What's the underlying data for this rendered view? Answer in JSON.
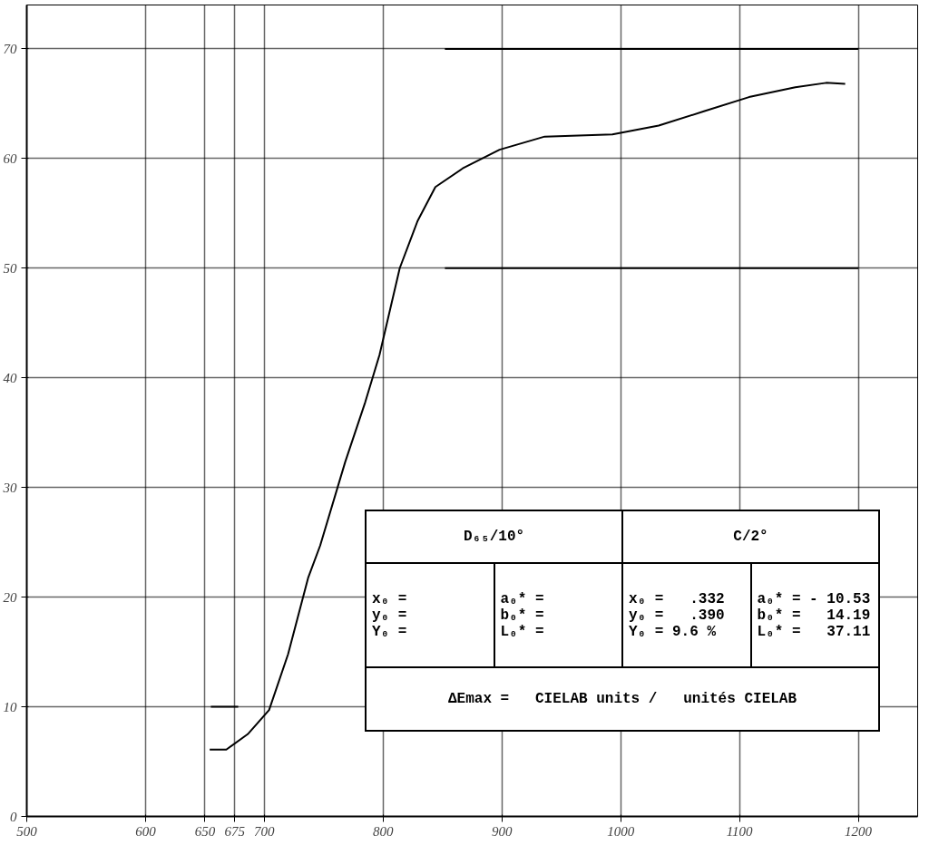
{
  "chart_data": {
    "type": "line",
    "series": [
      {
        "color": "#000000",
        "x": [
          654,
          668,
          686,
          704,
          720,
          737,
          747,
          768,
          785,
          797,
          814,
          829,
          844,
          867,
          898,
          936,
          993,
          1032,
          1070,
          1108,
          1147,
          1173,
          1189
        ],
        "values": [
          6.1,
          6.1,
          7.5,
          9.7,
          14.8,
          21.8,
          24.7,
          32.3,
          37.8,
          42.1,
          50.0,
          54.3,
          57.4,
          59.1,
          60.8,
          62.0,
          62.2,
          63.0,
          64.3,
          65.6,
          66.5,
          66.9,
          66.8
        ]
      },
      {
        "color": "#000000",
        "x": [
          852,
          1200
        ],
        "values": [
          70,
          70
        ]
      },
      {
        "color": "#000000",
        "x": [
          852,
          1200
        ],
        "values": [
          50,
          50
        ]
      },
      {
        "color": "#000000",
        "x": [
          655,
          678
        ],
        "values": [
          10,
          10
        ]
      }
    ],
    "xlim": [
      500,
      1250
    ],
    "ylim": [
      0,
      74
    ],
    "xticks": [
      500,
      600,
      650,
      675,
      700,
      800,
      900,
      1000,
      1100,
      1200
    ],
    "yticks": [
      0,
      10,
      20,
      30,
      40,
      50,
      60,
      70
    ],
    "grid": true,
    "annotations": [
      "D₆₅/10°",
      "C/2°",
      "x₀ =",
      "y₀ =",
      "Y₀ =",
      "a₀* =",
      "b₀* =",
      "L₀* =",
      "x₀ =   .332",
      "y₀ =   .390",
      "Y₀ = 9.6 %",
      "a₀* = - 10.53",
      "b₀* =   14.19",
      "L₀* =   37.11",
      "ΔEmax =   CIELAB units /   unités CIELAB"
    ]
  }
}
